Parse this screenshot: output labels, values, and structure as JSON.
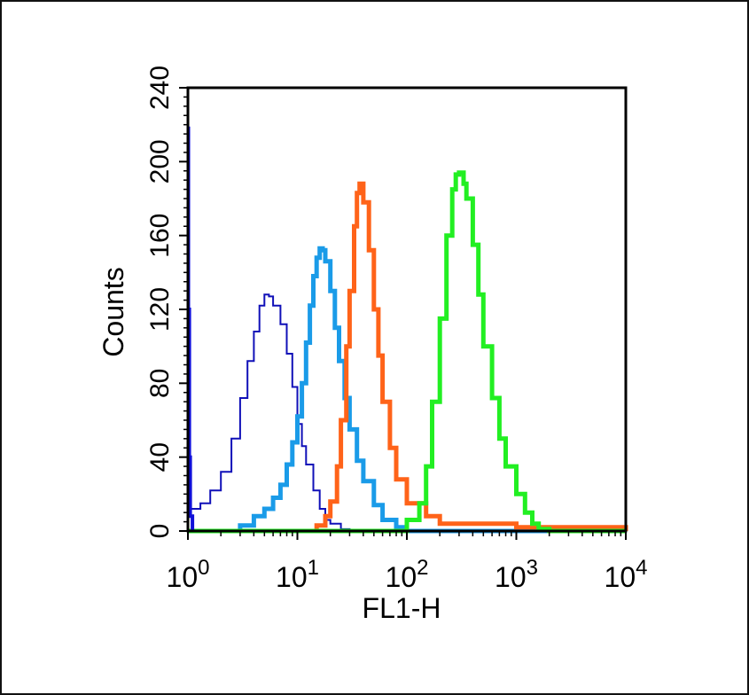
{
  "chart_data": {
    "type": "line",
    "xlabel": "FL1-H",
    "ylabel": "Counts",
    "x_scale": "log",
    "xlim": [
      1,
      10000
    ],
    "ylim": [
      0,
      240
    ],
    "x_ticks": [
      {
        "value": 1,
        "base": "10",
        "exp": "0"
      },
      {
        "value": 10,
        "base": "10",
        "exp": "1"
      },
      {
        "value": 100,
        "base": "10",
        "exp": "2"
      },
      {
        "value": 1000,
        "base": "10",
        "exp": "3"
      },
      {
        "value": 10000,
        "base": "10",
        "exp": "4"
      }
    ],
    "y_ticks": [
      "0",
      "40",
      "80",
      "120",
      "160",
      "200",
      "240"
    ],
    "grid": false,
    "series": [
      {
        "color": "#1010b8",
        "style": "thin",
        "x": [
          1,
          1.3,
          1.6,
          2,
          2.5,
          3,
          3.5,
          4,
          4.5,
          5,
          5.5,
          6,
          7,
          8,
          9,
          10,
          11,
          12,
          14,
          16,
          18,
          20,
          25,
          30,
          50,
          100,
          1000,
          10000
        ],
        "y": [
          12,
          15,
          22,
          32,
          50,
          72,
          92,
          108,
          122,
          128,
          127,
          122,
          112,
          96,
          78,
          58,
          46,
          36,
          22,
          12,
          6,
          4,
          1,
          0,
          0,
          0,
          0,
          0
        ]
      },
      {
        "color": "#1a9be8",
        "style": "thick",
        "x": [
          1,
          2,
          3,
          4,
          5,
          6,
          7,
          8,
          9,
          10,
          11,
          12,
          13,
          14,
          15,
          16,
          17,
          18,
          20,
          22,
          24,
          27,
          30,
          35,
          40,
          50,
          60,
          80,
          100,
          1000,
          10000
        ],
        "y": [
          0,
          0,
          3,
          8,
          12,
          18,
          25,
          36,
          48,
          62,
          80,
          102,
          122,
          138,
          148,
          153,
          152,
          146,
          130,
          110,
          92,
          72,
          55,
          38,
          27,
          14,
          6,
          2,
          0,
          0,
          0
        ]
      },
      {
        "color": "#ff6319",
        "style": "thick",
        "x": [
          1,
          10,
          15,
          18,
          20,
          23,
          25,
          28,
          30,
          33,
          35,
          37,
          40,
          45,
          50,
          55,
          60,
          70,
          80,
          100,
          150,
          200,
          300,
          500,
          1000,
          10000
        ],
        "y": [
          0,
          0,
          3,
          8,
          16,
          35,
          60,
          100,
          130,
          165,
          183,
          188,
          178,
          152,
          120,
          95,
          70,
          45,
          28,
          15,
          8,
          4,
          4,
          4,
          2,
          0
        ]
      },
      {
        "color": "#22ef22",
        "style": "thick",
        "x": [
          1,
          50,
          100,
          130,
          150,
          170,
          200,
          230,
          260,
          280,
          300,
          330,
          350,
          400,
          450,
          500,
          600,
          700,
          800,
          1000,
          1200,
          1400,
          1600,
          2000,
          10000
        ],
        "y": [
          0,
          0,
          6,
          15,
          35,
          70,
          115,
          160,
          185,
          193,
          194,
          188,
          180,
          155,
          128,
          100,
          72,
          50,
          35,
          20,
          10,
          4,
          1,
          0,
          0
        ]
      },
      {
        "color": "#1010d8",
        "style": "spike",
        "x": [
          1,
          1.01,
          1.03,
          1.05,
          1.1
        ],
        "y": [
          218,
          120,
          40,
          8,
          0
        ]
      }
    ]
  }
}
